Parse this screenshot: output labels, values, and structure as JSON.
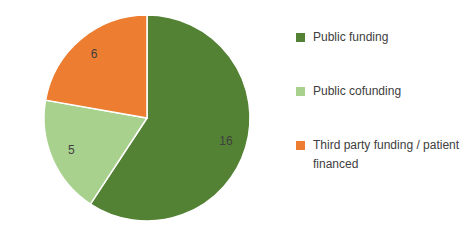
{
  "chart_data": {
    "type": "pie",
    "categories": [
      "Public funding",
      "Public cofunding",
      "Third party funding / patient financed"
    ],
    "values": [
      16,
      5,
      6
    ],
    "colors": [
      "#548235",
      "#a9d18e",
      "#ed7d31"
    ],
    "data_labels": true,
    "legend": "right"
  }
}
